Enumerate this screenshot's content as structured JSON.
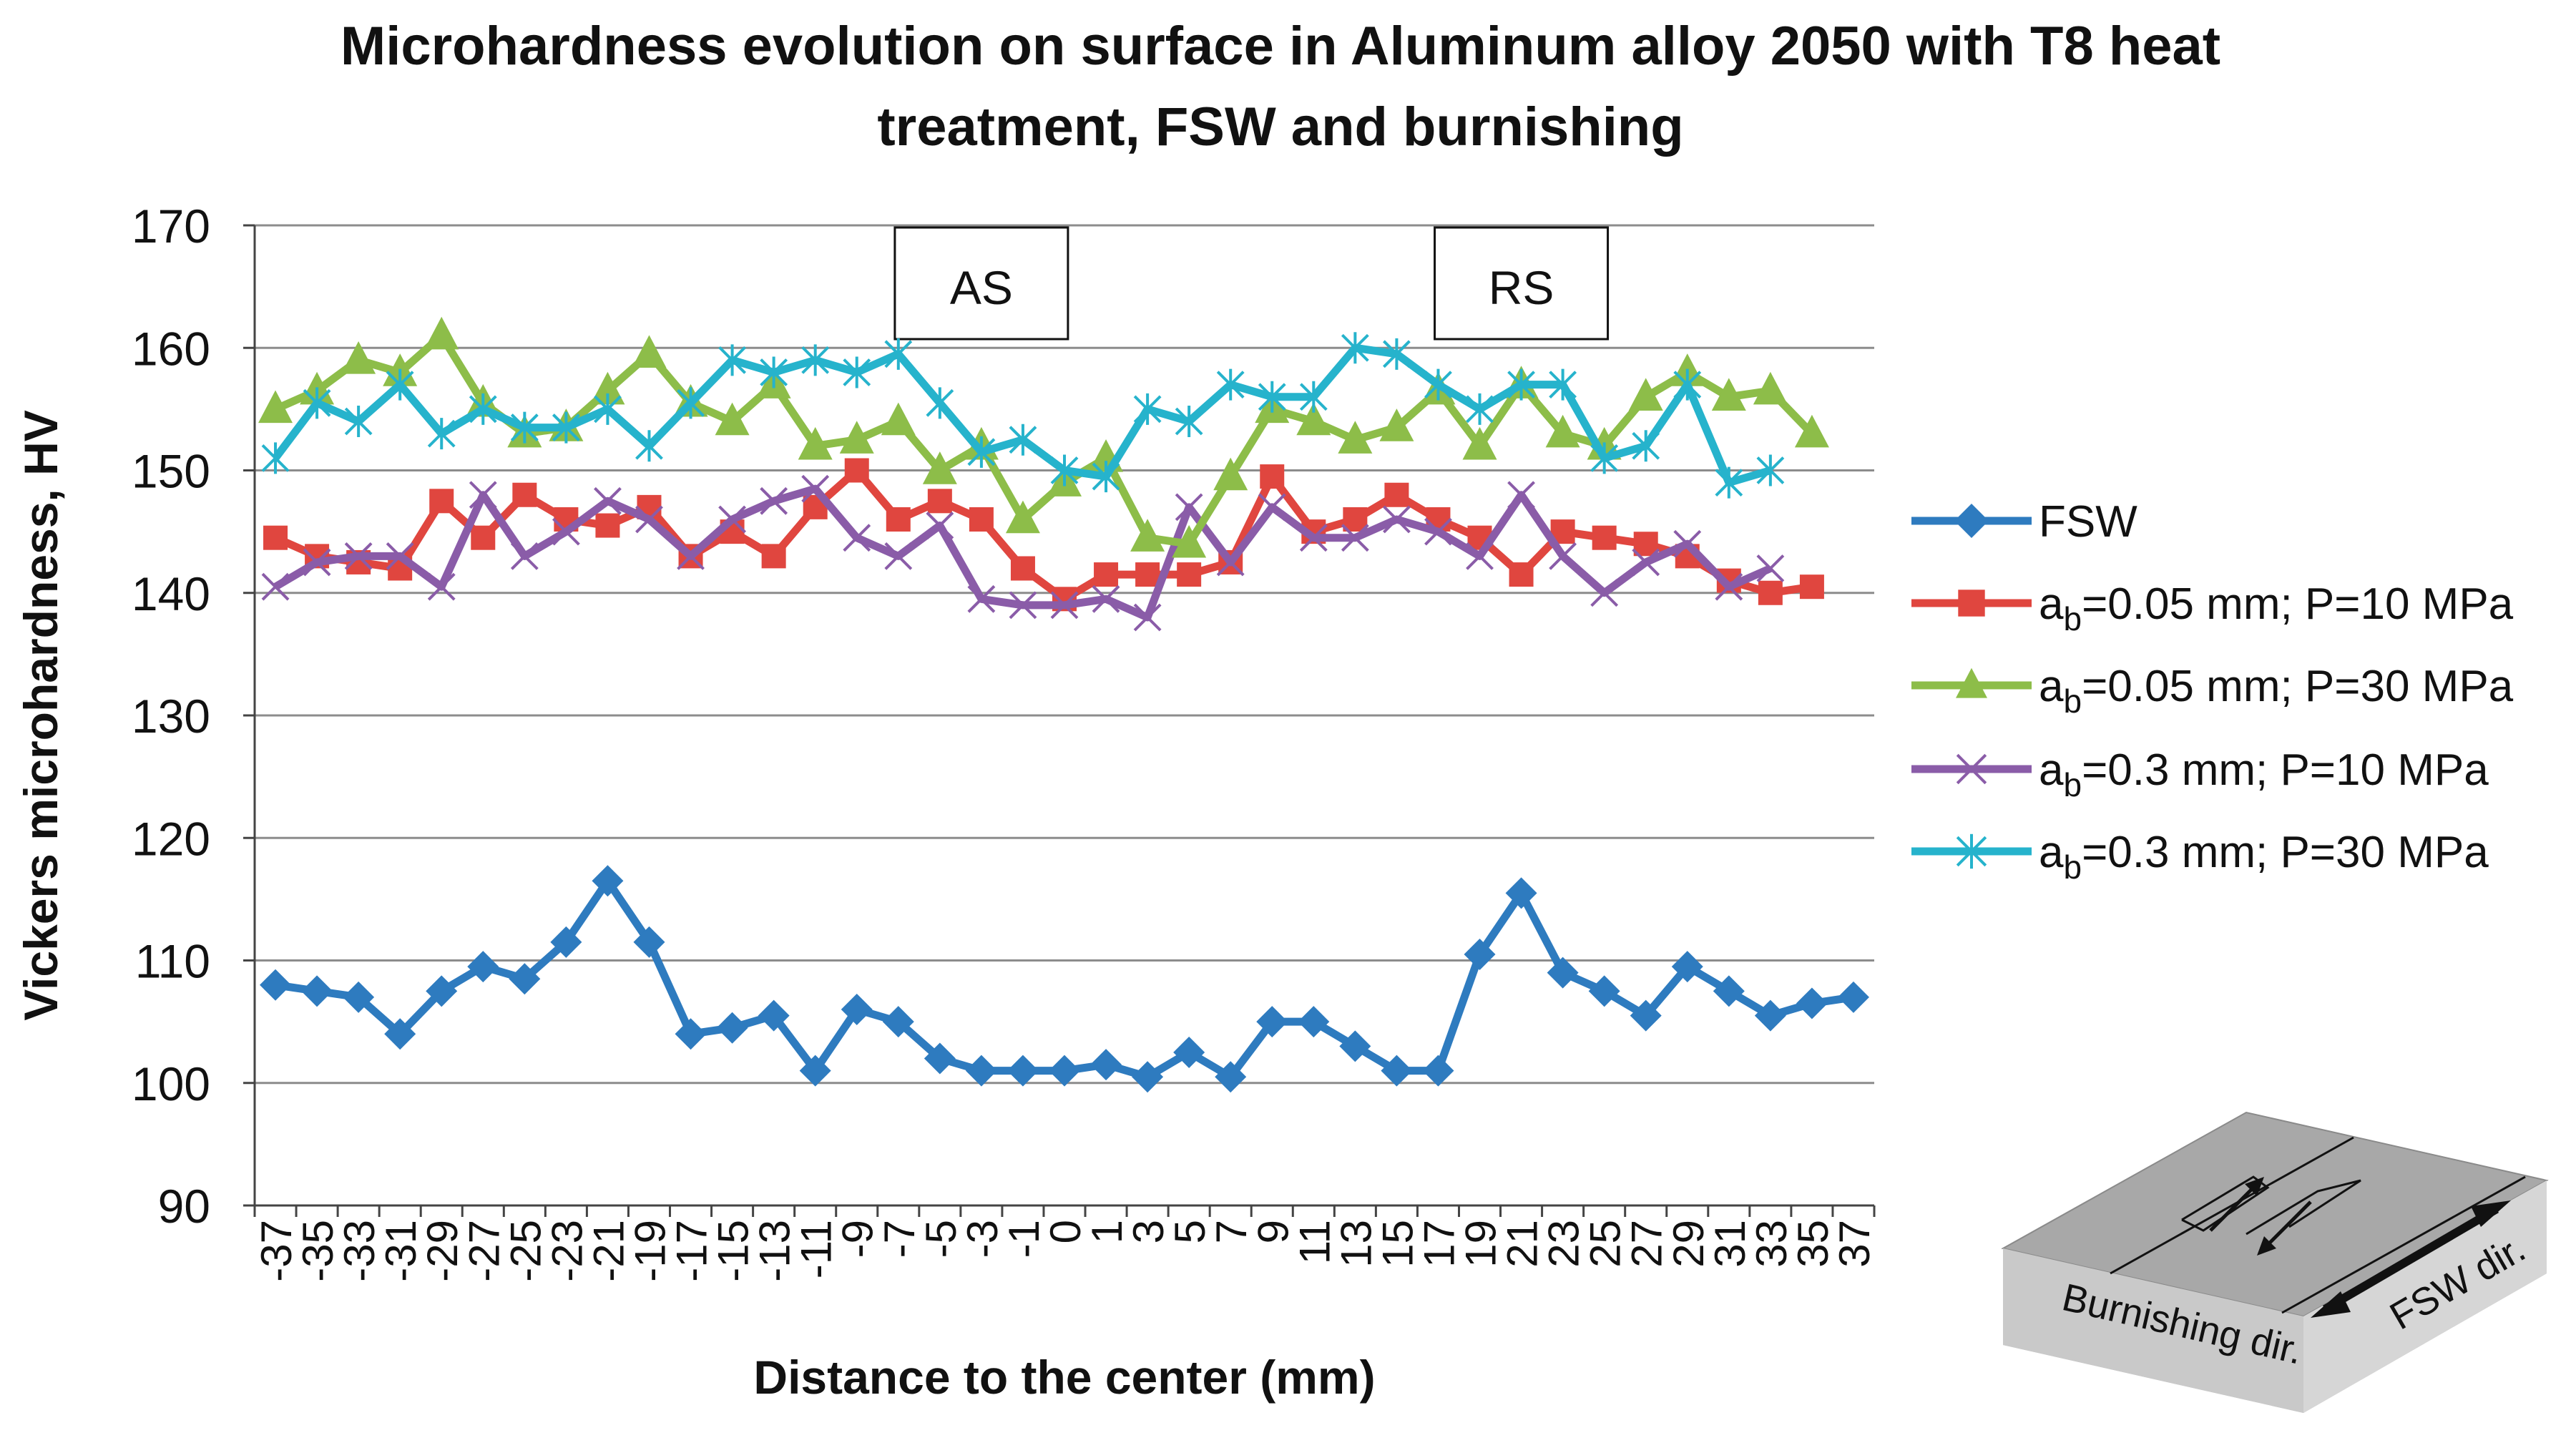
{
  "chart_data": {
    "type": "line",
    "title_lines": [
      "Microhardness evolution on surface in Aluminum alloy 2050 with T8 heat",
      "treatment, FSW and burnishing"
    ],
    "xlabel": "Distance to the center (mm)",
    "ylabel": "Vickers microhardness, HV",
    "ylim": [
      90,
      170
    ],
    "yticks": [
      90,
      100,
      110,
      120,
      130,
      140,
      150,
      160,
      170
    ],
    "grid": true,
    "legend_position": "right",
    "categories": [
      "-37",
      "-35",
      "-33",
      "-31",
      "-29",
      "-27",
      "-25",
      "-23",
      "-21",
      "-19",
      "-17",
      "-15",
      "-13",
      "-11",
      "-9",
      "-7",
      "-5",
      "-3",
      "-1",
      "0",
      "1",
      "3",
      "5",
      "7",
      "9",
      "11",
      "13",
      "15",
      "17",
      "19",
      "21",
      "23",
      "25",
      "27",
      "29",
      "31",
      "33",
      "35",
      "37"
    ],
    "series": [
      {
        "name": "FSW",
        "legend_main": "FSW",
        "legend_sub": "",
        "legend_rest": "",
        "color": "#2e7bbf",
        "marker": "diamond",
        "values": [
          108,
          107.5,
          107,
          104,
          107.5,
          109.5,
          108.5,
          111.5,
          116.5,
          111.5,
          104,
          104.5,
          105.5,
          101,
          106,
          105,
          102,
          101,
          101,
          101,
          101.5,
          100.5,
          102.5,
          100.5,
          105,
          105,
          103,
          101,
          101,
          110.5,
          115.5,
          109,
          107.5,
          105.5,
          109.5,
          107.5,
          105.5,
          106.5,
          107
        ]
      },
      {
        "name": "ab=0.05 mm; P=10 MPa",
        "legend_main": "a",
        "legend_sub": "b",
        "legend_rest": "=0.05 mm; P=10 MPa",
        "color": "#e0463f",
        "marker": "square",
        "values": [
          144.5,
          143,
          142.5,
          142,
          147.5,
          144.5,
          148,
          146,
          145.5,
          147,
          143,
          145,
          143,
          147,
          150,
          146,
          147.5,
          146,
          142,
          139.5,
          141.5,
          141.5,
          141.5,
          142.5,
          149.5,
          145,
          146,
          148,
          146,
          144.5,
          141.5,
          145,
          144.5,
          144,
          143,
          141,
          140,
          140.5,
          null
        ]
      },
      {
        "name": "ab=0.05 mm; P=30 MPa",
        "legend_main": "a",
        "legend_sub": "b",
        "legend_rest": "=0.05 mm; P=30 MPa",
        "color": "#8dbd49",
        "marker": "triangle",
        "values": [
          155,
          156.5,
          159,
          158,
          161,
          155.5,
          153,
          153.5,
          156.5,
          159.5,
          155.5,
          154,
          157,
          152,
          152.5,
          154,
          150,
          152,
          146,
          149,
          151,
          144.5,
          144,
          149.5,
          155,
          154,
          152.5,
          153.5,
          156.5,
          152,
          157,
          153,
          152,
          156,
          158,
          156,
          156.5,
          153,
          null
        ]
      },
      {
        "name": "ab=0.3 mm; P=10 MPa",
        "legend_main": "a",
        "legend_sub": "b",
        "legend_rest": "=0.3 mm; P=10 MPa",
        "color": "#8a5ca8",
        "marker": "x",
        "values": [
          140.5,
          142.5,
          143,
          143,
          140.5,
          148,
          143,
          145,
          147.5,
          146,
          143,
          146,
          147.5,
          148.5,
          144.5,
          143,
          145.5,
          139.5,
          139,
          139,
          139.5,
          138,
          147,
          142.5,
          147,
          144.5,
          144.5,
          146,
          145,
          143,
          148,
          143,
          140,
          142.5,
          144,
          140.5,
          142,
          null,
          null
        ]
      },
      {
        "name": "ab=0.3 mm; P=30 MPa",
        "legend_main": "a",
        "legend_sub": "b",
        "legend_rest": "=0.3 mm; P=30 MPa",
        "color": "#26b3cc",
        "marker": "star",
        "values": [
          151,
          155.5,
          154,
          157,
          153,
          155,
          153.5,
          153.5,
          155,
          152,
          155.5,
          159,
          158,
          159,
          158,
          159.5,
          155.5,
          151.5,
          152.5,
          150,
          149.5,
          155,
          154,
          157,
          156,
          156,
          160,
          159.5,
          157,
          155,
          157,
          157,
          151,
          152,
          157,
          149,
          150,
          null,
          null
        ]
      }
    ],
    "annotations": [
      {
        "text": "AS",
        "at_category": "-3"
      },
      {
        "text": "RS",
        "at_category": "21"
      }
    ],
    "inset_labels": {
      "burnishing": "Burnishing dir.",
      "fsw": "FSW dir."
    }
  }
}
